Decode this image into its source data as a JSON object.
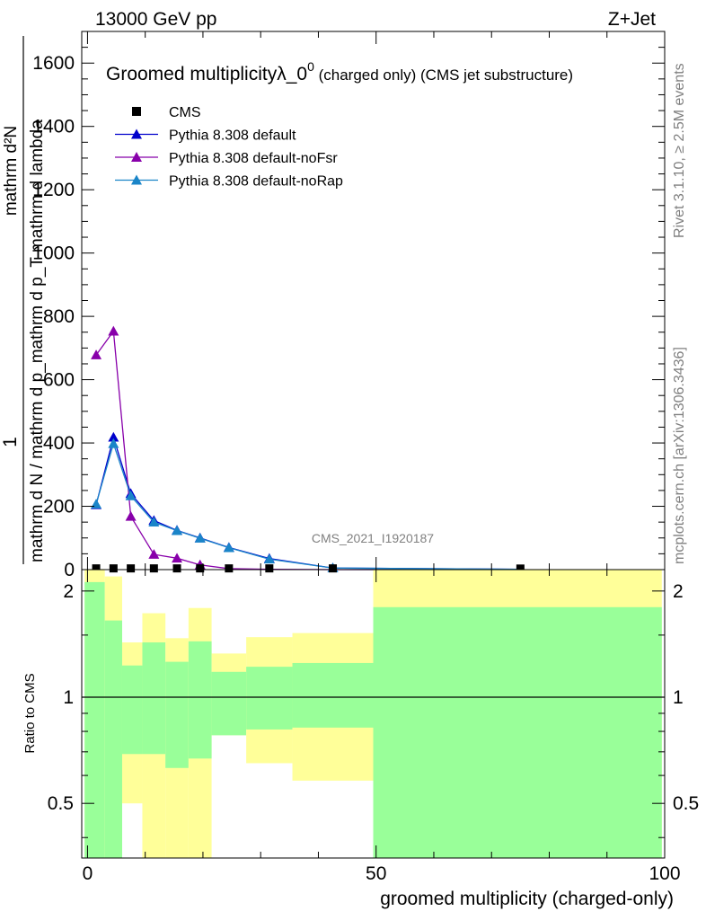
{
  "header": {
    "left": "13000 GeV pp",
    "right": "Z+Jet"
  },
  "side_labels": {
    "rivet": "Rivet 3.1.10, ≥ 2.5M events",
    "mcplots": "mcplots.cern.ch [arXiv:1306.3436]"
  },
  "watermark": "CMS_2021_I1920187",
  "chart_data": [
    {
      "type": "line",
      "title_main": "Groomed multiplicityλ_0",
      "title_sup": "0",
      "title_rest": " (charged only) (CMS jet substructure)",
      "ylabel_numerator": "1",
      "ylabel_denominator": "mathrm d N / mathrm d p_mathrm d p_T mathrm d lambda",
      "ylabel_aux": "mathrm d²N",
      "xlim": [
        -1,
        100
      ],
      "ylim": [
        0,
        1700
      ],
      "yticks": [
        0,
        200,
        400,
        600,
        800,
        1000,
        1200,
        1400,
        1600
      ],
      "ytick_labels": [
        "0",
        "200",
        "400",
        "600",
        "800",
        "1000",
        "1200",
        "1400",
        "1600"
      ],
      "colors": {
        "cms": "#000000",
        "default": "#0000cc",
        "noFsr": "#8800aa",
        "noRap": "#1a85c8"
      },
      "legend": [
        {
          "label": "CMS",
          "key": "cms",
          "marker": "square"
        },
        {
          "label": "Pythia 8.308 default",
          "key": "default",
          "marker": "triangle"
        },
        {
          "label": "Pythia 8.308 default-noFsr",
          "key": "noFsr",
          "marker": "triangle"
        },
        {
          "label": "Pythia 8.308 default-noRap",
          "key": "noRap",
          "marker": "triangle"
        }
      ],
      "cms_points": {
        "x": [
          1.5,
          4.5,
          7.5,
          11.5,
          15.5,
          19.5,
          24.5,
          31.5,
          42.5,
          75
        ],
        "y": [
          1,
          1,
          1,
          1,
          1,
          1,
          1,
          1,
          1,
          0.5
        ]
      },
      "series": [
        {
          "key": "default",
          "x": [
            1.5,
            4.5,
            7.5,
            11.5,
            15.5,
            19.5,
            24.5,
            31.5,
            42.5,
            75
          ],
          "y": [
            205,
            418,
            240,
            155,
            124,
            100,
            70,
            35,
            5,
            1
          ],
          "marker_count": 9
        },
        {
          "key": "noFsr",
          "x": [
            1.5,
            4.5,
            7.5,
            11.5,
            15.5,
            19.5,
            24.5,
            31.5,
            42.5,
            75
          ],
          "y": [
            678,
            753,
            168,
            48,
            36,
            15,
            3,
            1,
            0,
            0
          ],
          "marker_count": 6
        },
        {
          "key": "noRap",
          "x": [
            1.5,
            4.5,
            7.5,
            11.5,
            15.5,
            19.5,
            24.5,
            31.5,
            42.5,
            75
          ],
          "y": [
            207,
            398,
            233,
            150,
            123,
            99,
            69,
            33,
            5,
            1
          ],
          "marker_count": 9
        }
      ]
    },
    {
      "type": "area",
      "ylabel": "Ratio to CMS",
      "xlabel": "groomed multiplicity (charged-only)",
      "xlim": [
        -1,
        100
      ],
      "ylim": [
        0.35,
        2.3
      ],
      "log_y": true,
      "xticks": [
        0,
        50,
        100
      ],
      "xtick_labels": [
        "0",
        "50",
        "100"
      ],
      "yticks_labeled": [
        0.5,
        1,
        2
      ],
      "ytick_labels": [
        "0.5",
        "1",
        "2"
      ],
      "colors": {
        "stat": "#99ff99",
        "total": "#ffff99",
        "line": "#000000"
      },
      "bins": [
        {
          "lo": -0.5,
          "hi": 3,
          "g_lo": 0.35,
          "g_hi": 2.12,
          "y_lo": 0.35,
          "y_hi": 2.3
        },
        {
          "lo": 3,
          "hi": 6,
          "g_lo": 0.35,
          "g_hi": 1.65,
          "y_lo": 0.35,
          "y_hi": 2.2
        },
        {
          "lo": 6,
          "hi": 9.5,
          "g_lo": 0.69,
          "g_hi": 1.23,
          "y_lo": 0.5,
          "y_hi": 1.43
        },
        {
          "lo": 9.5,
          "hi": 13.5,
          "g_lo": 0.69,
          "g_hi": 1.43,
          "y_lo": 0.35,
          "y_hi": 1.73
        },
        {
          "lo": 13.5,
          "hi": 17.5,
          "g_lo": 0.63,
          "g_hi": 1.26,
          "y_lo": 0.35,
          "y_hi": 1.47
        },
        {
          "lo": 17.5,
          "hi": 21.5,
          "g_lo": 0.67,
          "g_hi": 1.44,
          "y_lo": 0.35,
          "y_hi": 1.79
        },
        {
          "lo": 21.5,
          "hi": 27.5,
          "g_lo": 0.78,
          "g_hi": 1.18,
          "y_lo": 0.78,
          "y_hi": 1.33
        },
        {
          "lo": 27.5,
          "hi": 35.5,
          "g_lo": 0.81,
          "g_hi": 1.22,
          "y_lo": 0.65,
          "y_hi": 1.48
        },
        {
          "lo": 35.5,
          "hi": 49.5,
          "g_lo": 0.82,
          "g_hi": 1.25,
          "y_lo": 0.58,
          "y_hi": 1.52
        },
        {
          "lo": 49.5,
          "hi": 99.5,
          "g_lo": 0.35,
          "g_hi": 1.8,
          "y_lo": 0.35,
          "y_hi": 2.3
        }
      ]
    }
  ]
}
